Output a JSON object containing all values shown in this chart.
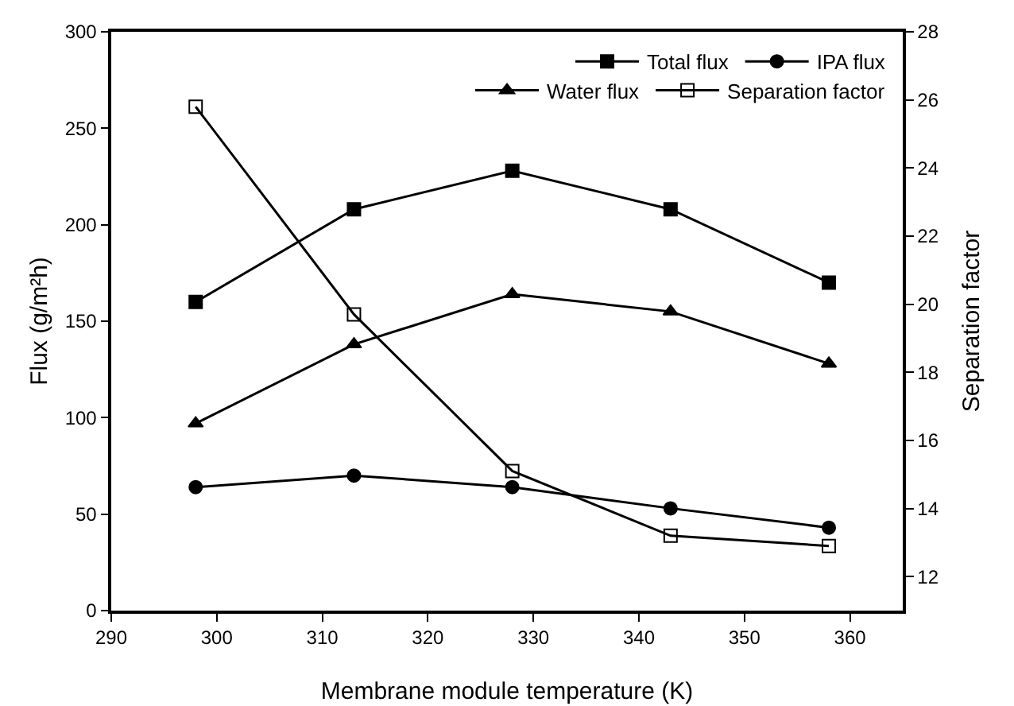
{
  "chart_data": {
    "type": "line",
    "xlabel": "Membrane module temperature (K)",
    "ylabel": "Flux (g/m²h)",
    "y2label": "Separation factor",
    "x": [
      298,
      313,
      328,
      343,
      358
    ],
    "series": [
      {
        "name": "Total flux",
        "color": "#000000",
        "marker": "square",
        "values": [
          160,
          208,
          228,
          208,
          170
        ]
      },
      {
        "name": "IPA flux",
        "color": "#000000",
        "marker": "circle",
        "values": [
          64,
          70,
          64,
          53,
          43
        ]
      },
      {
        "name": "Water flux",
        "color": "#000000",
        "marker": "triangle",
        "values": [
          97,
          138,
          164,
          155,
          128
        ]
      },
      {
        "name": "Separation factor",
        "color": "#000000",
        "marker": "square-open",
        "axis": "y2",
        "values": [
          25.8,
          19.7,
          15.1,
          13.2,
          12.9
        ]
      }
    ],
    "xlim": [
      290,
      365
    ],
    "xticks": [
      290,
      300,
      310,
      320,
      330,
      340,
      350,
      360
    ],
    "ylim": [
      0,
      300
    ],
    "yticks": [
      0,
      50,
      100,
      150,
      200,
      250,
      300
    ],
    "y2lim": [
      11,
      28
    ],
    "y2ticks": [
      12,
      14,
      16,
      18,
      20,
      22,
      24,
      26,
      28
    ],
    "legend": "top right",
    "grid": false,
    "line_style": "solid"
  }
}
